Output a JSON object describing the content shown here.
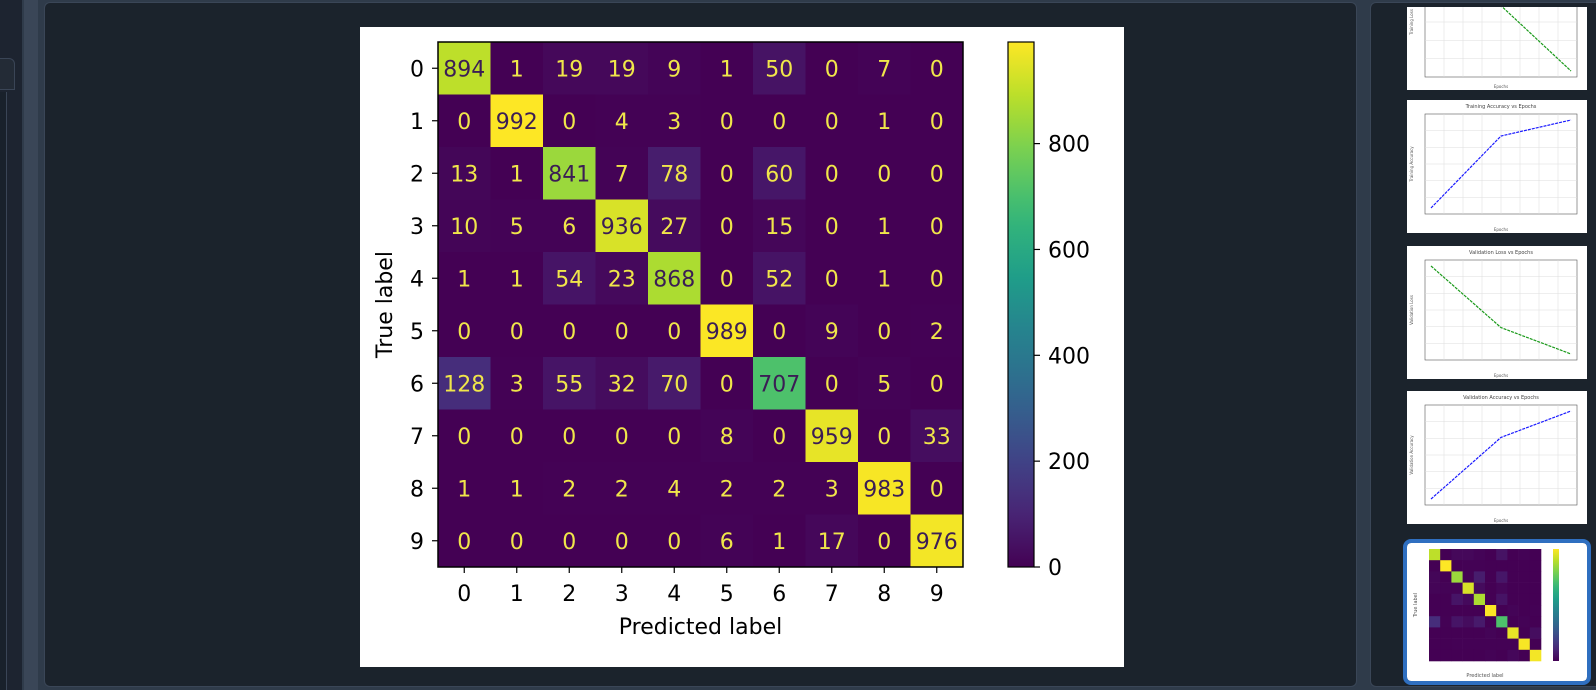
{
  "chart_data": {
    "type": "heatmap",
    "title": "",
    "xlabel": "Predicted label",
    "ylabel": "True label",
    "x_categories": [
      "0",
      "1",
      "2",
      "3",
      "4",
      "5",
      "6",
      "7",
      "8",
      "9"
    ],
    "y_categories": [
      "0",
      "1",
      "2",
      "3",
      "4",
      "5",
      "6",
      "7",
      "8",
      "9"
    ],
    "matrix": [
      [
        894,
        1,
        19,
        19,
        9,
        1,
        50,
        0,
        7,
        0
      ],
      [
        0,
        992,
        0,
        4,
        3,
        0,
        0,
        0,
        1,
        0
      ],
      [
        13,
        1,
        841,
        7,
        78,
        0,
        60,
        0,
        0,
        0
      ],
      [
        10,
        5,
        6,
        936,
        27,
        0,
        15,
        0,
        1,
        0
      ],
      [
        1,
        1,
        54,
        23,
        868,
        0,
        52,
        0,
        1,
        0
      ],
      [
        0,
        0,
        0,
        0,
        0,
        989,
        0,
        9,
        0,
        2
      ],
      [
        128,
        3,
        55,
        32,
        70,
        0,
        707,
        0,
        5,
        0
      ],
      [
        0,
        0,
        0,
        0,
        0,
        8,
        0,
        959,
        0,
        33
      ],
      [
        1,
        1,
        2,
        2,
        4,
        2,
        2,
        3,
        983,
        0
      ],
      [
        0,
        0,
        0,
        0,
        0,
        6,
        1,
        17,
        0,
        976
      ]
    ],
    "colormap": "viridis",
    "colorbar": {
      "ticks": [
        0,
        200,
        400,
        600,
        800
      ],
      "range": [
        0,
        992
      ]
    },
    "grid": false
  },
  "thumbnails": [
    {
      "name": "training-loss-plot",
      "title": "",
      "ylabel": "Training Loss",
      "xlabel": "Epochs",
      "line_color": "#1a9a1a",
      "visible_values": [
        0.032,
        0.0305,
        0.0275
      ]
    },
    {
      "name": "training-accuracy-plot",
      "title": "Training Accuracy vs Epochs",
      "ylabel": "Training Accuracy",
      "xlabel": "Epochs",
      "line_color": "#1a1aff",
      "values": [
        0.07,
        0.115,
        0.125
      ]
    },
    {
      "name": "validation-loss-plot",
      "title": "Validation Loss vs Epochs",
      "ylabel": "Validation Loss",
      "xlabel": "Epochs",
      "line_color": "#1a9a1a",
      "values": [
        0.92,
        0.85,
        0.82
      ]
    },
    {
      "name": "validation-accuracy-plot",
      "title": "Validation Accuracy vs Epochs",
      "ylabel": "Validation Accuracy",
      "xlabel": "Epochs",
      "line_color": "#1a1aff",
      "values": [
        0.08,
        0.115,
        0.13
      ]
    },
    {
      "name": "confusion-matrix-thumbnail",
      "selected": true,
      "xlabel": "Predicted label",
      "ylabel": "True label"
    }
  ],
  "colors": {
    "app_background": "#2f3b4a",
    "panel_background": "#1b232c",
    "selection_outline": "#2f6fc0"
  }
}
